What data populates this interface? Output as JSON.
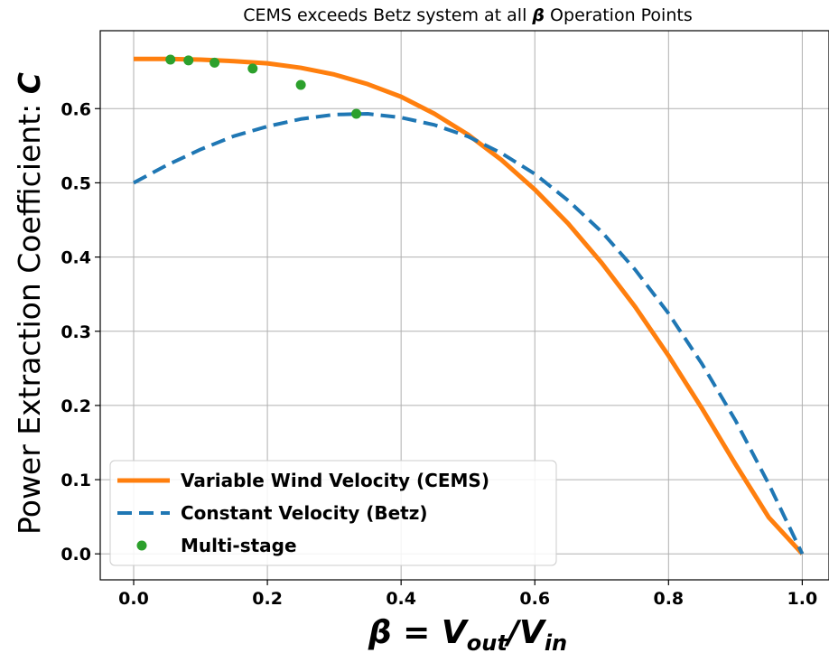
{
  "chart_data": {
    "type": "line",
    "title_prefix": "CEMS exceeds Betz system at all ",
    "title_symbol": "β",
    "title_suffix": " Operation Points",
    "ylabel_text": "Power Extraction Coefficient: ",
    "ylabel_symbol": "C",
    "xlabel_beta": "β",
    "xlabel_eq": " = ",
    "xlabel_v": "V",
    "xlabel_out": "out",
    "xlabel_slash": "/V",
    "xlabel_in": "in",
    "xlim": [
      -0.05,
      1.04
    ],
    "ylim": [
      -0.035,
      0.705
    ],
    "xticks": [
      0.0,
      0.2,
      0.4,
      0.6,
      0.8,
      1.0
    ],
    "xtick_labels": [
      "0.0",
      "0.2",
      "0.4",
      "0.6",
      "0.8",
      "1.0"
    ],
    "yticks": [
      0.0,
      0.1,
      0.2,
      0.3,
      0.4,
      0.5,
      0.6
    ],
    "ytick_labels": [
      "0.0",
      "0.1",
      "0.2",
      "0.3",
      "0.4",
      "0.5",
      "0.6"
    ],
    "grid": true,
    "legend_position": "lower-left",
    "series": [
      {
        "name": "Variable Wind Velocity (CEMS)",
        "style": "solid",
        "color": "#ff7f0e",
        "x": [
          0.0,
          0.05,
          0.1,
          0.15,
          0.2,
          0.25,
          0.3,
          0.35,
          0.4,
          0.45,
          0.5,
          0.55,
          0.6,
          0.65,
          0.7,
          0.75,
          0.8,
          0.85,
          0.9,
          0.95,
          1.0
        ],
        "y": [
          0.667,
          0.667,
          0.666,
          0.664,
          0.661,
          0.655,
          0.646,
          0.633,
          0.616,
          0.593,
          0.565,
          0.531,
          0.491,
          0.445,
          0.392,
          0.333,
          0.267,
          0.196,
          0.121,
          0.049,
          0.0
        ]
      },
      {
        "name": "Constant Velocity (Betz)",
        "style": "dashed",
        "color": "#1f77b4",
        "x": [
          0.0,
          0.05,
          0.1,
          0.15,
          0.2,
          0.25,
          0.3,
          0.35,
          0.4,
          0.45,
          0.5,
          0.55,
          0.6,
          0.65,
          0.7,
          0.75,
          0.8,
          0.85,
          0.9,
          0.95,
          1.0
        ],
        "y": [
          0.5,
          0.524,
          0.545,
          0.563,
          0.576,
          0.586,
          0.592,
          0.593,
          0.588,
          0.578,
          0.5625,
          0.54,
          0.512,
          0.476,
          0.434,
          0.383,
          0.324,
          0.256,
          0.18,
          0.0939,
          0.0
        ]
      },
      {
        "name": "Multi-stage",
        "style": "markers",
        "color": "#2ca02c",
        "x": [
          0.055,
          0.082,
          0.121,
          0.178,
          0.25,
          0.333
        ],
        "y": [
          0.666,
          0.665,
          0.662,
          0.654,
          0.632,
          0.593
        ]
      }
    ]
  }
}
